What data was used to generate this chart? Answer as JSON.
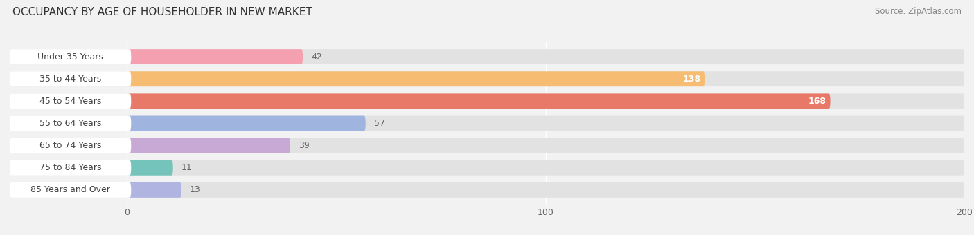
{
  "title": "OCCUPANCY BY AGE OF HOUSEHOLDER IN NEW MARKET",
  "source": "Source: ZipAtlas.com",
  "categories": [
    "Under 35 Years",
    "35 to 44 Years",
    "45 to 54 Years",
    "55 to 64 Years",
    "65 to 74 Years",
    "75 to 84 Years",
    "85 Years and Over"
  ],
  "values": [
    42,
    138,
    168,
    57,
    39,
    11,
    13
  ],
  "bar_colors": [
    "#f5a0b0",
    "#f5bc72",
    "#e87868",
    "#a0b4e0",
    "#c8a8d4",
    "#74c4bc",
    "#b0b4e0"
  ],
  "xlim_min": -28,
  "xlim_max": 200,
  "data_min": 0,
  "data_max": 200,
  "xticks": [
    0,
    100,
    200
  ],
  "background_color": "#f2f2f2",
  "bar_bg_color": "#e2e2e2",
  "label_bg_color": "#ffffff",
  "label_color_dark": "#666666",
  "label_color_light": "#ffffff",
  "title_fontsize": 11,
  "label_fontsize": 9,
  "value_fontsize": 9,
  "source_fontsize": 8.5,
  "bar_height": 0.68,
  "rounding_size": 0.34
}
